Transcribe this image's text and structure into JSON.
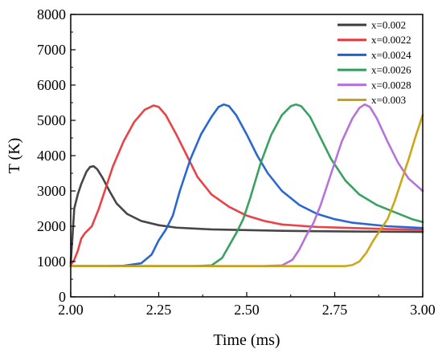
{
  "chart_data": {
    "type": "line",
    "xlabel": "Time (ms)",
    "ylabel": "T (K)",
    "xlim": [
      2.0,
      3.0
    ],
    "ylim": [
      0,
      8000
    ],
    "xticks": [
      "2.00",
      "2.25",
      "2.50",
      "2.75",
      "3.00"
    ],
    "yticks": [
      "0",
      "1000",
      "2000",
      "3000",
      "4000",
      "5000",
      "6000",
      "7000",
      "8000"
    ],
    "grid": false,
    "legend_position": "top-right",
    "series": [
      {
        "name": "x=0.002",
        "color": "#3c3c3c",
        "points": [
          [
            2.0,
            950
          ],
          [
            2.005,
            1700
          ],
          [
            2.01,
            2500
          ],
          [
            2.02,
            2900
          ],
          [
            2.03,
            3200
          ],
          [
            2.045,
            3550
          ],
          [
            2.055,
            3680
          ],
          [
            2.065,
            3700
          ],
          [
            2.075,
            3620
          ],
          [
            2.09,
            3380
          ],
          [
            2.11,
            3000
          ],
          [
            2.13,
            2650
          ],
          [
            2.16,
            2350
          ],
          [
            2.2,
            2150
          ],
          [
            2.25,
            2030
          ],
          [
            2.3,
            1960
          ],
          [
            2.4,
            1910
          ],
          [
            2.5,
            1890
          ],
          [
            2.6,
            1870
          ],
          [
            2.7,
            1860
          ],
          [
            2.8,
            1850
          ],
          [
            2.9,
            1845
          ],
          [
            3.0,
            1840
          ]
        ]
      },
      {
        "name": "x=0.0022",
        "color": "#e8383d",
        "points": [
          [
            2.0,
            900
          ],
          [
            2.01,
            1050
          ],
          [
            2.02,
            1300
          ],
          [
            2.03,
            1650
          ],
          [
            2.04,
            1800
          ],
          [
            2.05,
            1900
          ],
          [
            2.06,
            2000
          ],
          [
            2.08,
            2500
          ],
          [
            2.1,
            3100
          ],
          [
            2.12,
            3700
          ],
          [
            2.15,
            4400
          ],
          [
            2.18,
            4950
          ],
          [
            2.21,
            5300
          ],
          [
            2.235,
            5420
          ],
          [
            2.25,
            5380
          ],
          [
            2.27,
            5150
          ],
          [
            2.3,
            4600
          ],
          [
            2.33,
            4000
          ],
          [
            2.36,
            3400
          ],
          [
            2.4,
            2900
          ],
          [
            2.45,
            2550
          ],
          [
            2.5,
            2300
          ],
          [
            2.55,
            2150
          ],
          [
            2.6,
            2050
          ],
          [
            2.7,
            1980
          ],
          [
            2.8,
            1950
          ],
          [
            2.9,
            1920
          ],
          [
            3.0,
            1900
          ]
        ]
      },
      {
        "name": "x=0.0024",
        "color": "#1f5fd0",
        "points": [
          [
            2.0,
            870
          ],
          [
            2.1,
            870
          ],
          [
            2.15,
            880
          ],
          [
            2.2,
            950
          ],
          [
            2.23,
            1200
          ],
          [
            2.25,
            1600
          ],
          [
            2.27,
            1900
          ],
          [
            2.29,
            2300
          ],
          [
            2.31,
            3000
          ],
          [
            2.34,
            3900
          ],
          [
            2.37,
            4600
          ],
          [
            2.4,
            5100
          ],
          [
            2.42,
            5380
          ],
          [
            2.435,
            5450
          ],
          [
            2.45,
            5400
          ],
          [
            2.47,
            5150
          ],
          [
            2.5,
            4600
          ],
          [
            2.53,
            4000
          ],
          [
            2.56,
            3500
          ],
          [
            2.6,
            3000
          ],
          [
            2.65,
            2600
          ],
          [
            2.7,
            2350
          ],
          [
            2.75,
            2200
          ],
          [
            2.8,
            2100
          ],
          [
            2.9,
            2000
          ],
          [
            3.0,
            1950
          ]
        ]
      },
      {
        "name": "x=0.0026",
        "color": "#2e9c5a",
        "points": [
          [
            2.0,
            870
          ],
          [
            2.35,
            870
          ],
          [
            2.4,
            890
          ],
          [
            2.43,
            1100
          ],
          [
            2.45,
            1450
          ],
          [
            2.47,
            1800
          ],
          [
            2.49,
            2200
          ],
          [
            2.51,
            2800
          ],
          [
            2.54,
            3800
          ],
          [
            2.57,
            4600
          ],
          [
            2.6,
            5150
          ],
          [
            2.625,
            5400
          ],
          [
            2.64,
            5450
          ],
          [
            2.655,
            5400
          ],
          [
            2.68,
            5100
          ],
          [
            2.71,
            4500
          ],
          [
            2.74,
            3900
          ],
          [
            2.78,
            3300
          ],
          [
            2.82,
            2900
          ],
          [
            2.87,
            2600
          ],
          [
            2.92,
            2400
          ],
          [
            2.97,
            2200
          ],
          [
            3.0,
            2120
          ]
        ]
      },
      {
        "name": "x=0.0028",
        "color": "#b26bd9",
        "points": [
          [
            2.0,
            870
          ],
          [
            2.55,
            870
          ],
          [
            2.6,
            890
          ],
          [
            2.63,
            1050
          ],
          [
            2.65,
            1350
          ],
          [
            2.67,
            1750
          ],
          [
            2.69,
            2100
          ],
          [
            2.71,
            2600
          ],
          [
            2.74,
            3500
          ],
          [
            2.77,
            4400
          ],
          [
            2.8,
            5050
          ],
          [
            2.82,
            5350
          ],
          [
            2.835,
            5450
          ],
          [
            2.85,
            5380
          ],
          [
            2.87,
            5050
          ],
          [
            2.9,
            4400
          ],
          [
            2.93,
            3800
          ],
          [
            2.96,
            3350
          ],
          [
            3.0,
            3000
          ]
        ]
      },
      {
        "name": "x=0.003",
        "color": "#c9a20e",
        "points": [
          [
            2.0,
            870
          ],
          [
            2.78,
            870
          ],
          [
            2.8,
            900
          ],
          [
            2.82,
            1000
          ],
          [
            2.84,
            1250
          ],
          [
            2.86,
            1600
          ],
          [
            2.88,
            1900
          ],
          [
            2.9,
            2200
          ],
          [
            2.92,
            2700
          ],
          [
            2.94,
            3300
          ],
          [
            2.96,
            3900
          ],
          [
            2.98,
            4550
          ],
          [
            3.0,
            5150
          ]
        ]
      }
    ]
  }
}
